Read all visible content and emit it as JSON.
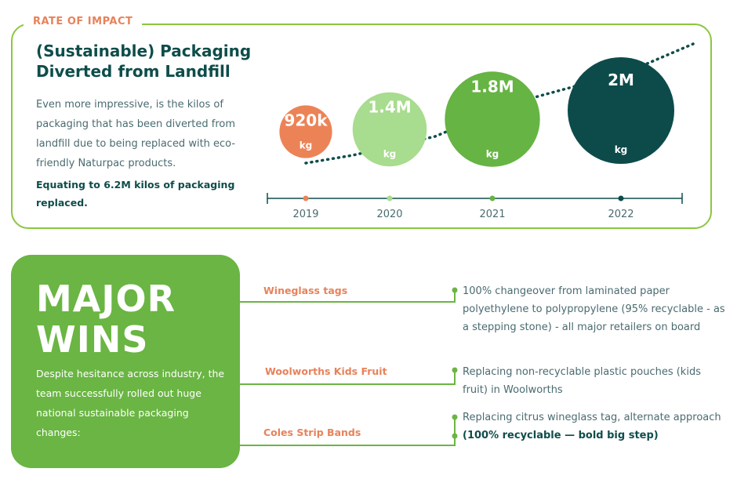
{
  "impact": {
    "tag": "RATE OF IMPACT",
    "title": "(Sustainable) Packaging Diverted from Landfill",
    "description": "Even more impressive, is the kilos of packaging that has been diverted from landfill due to being replaced with eco-friendly Naturpac products.",
    "summary": "Equating to 6.2M kilos of packaging replaced."
  },
  "chart_data": {
    "type": "scatter",
    "title": "",
    "xlabel": "",
    "ylabel": "",
    "categories": [
      "2019",
      "2020",
      "2021",
      "2022"
    ],
    "values": [
      920000,
      1400000,
      1800000,
      2000000
    ],
    "labels": [
      "920k",
      "1.4M",
      "1.8M",
      "2M"
    ],
    "unit": "kg",
    "colors": [
      "#ec8357",
      "#a8dc8e",
      "#66b443",
      "#0d4b4b"
    ],
    "axis_color": "#0e4d4a",
    "trend_color": "#0e4d4a",
    "grid": false
  },
  "wins": {
    "heading_line1": "MAJOR",
    "heading_line2": "WINS",
    "description": "Despite hesitance across industry, the team successfully rolled out huge national sustainable packaging changes:",
    "items": [
      {
        "label": "Wineglass tags",
        "text": "100% changeover from laminated paper polyethylene to polypropylene (95% recyclable - as a stepping stone) - all major retailers on board",
        "bold": ""
      },
      {
        "label": "Woolworths Kids Fruit",
        "text": "Replacing non-recyclable plastic pouches (kids fruit) in Woolworths",
        "bold": ""
      },
      {
        "label": "Coles Strip Bands",
        "text": "Replacing citrus wineglass tag, alternate approach",
        "bold": "(100% recyclable — bold big step)"
      }
    ],
    "line_color": "#6ab543"
  }
}
